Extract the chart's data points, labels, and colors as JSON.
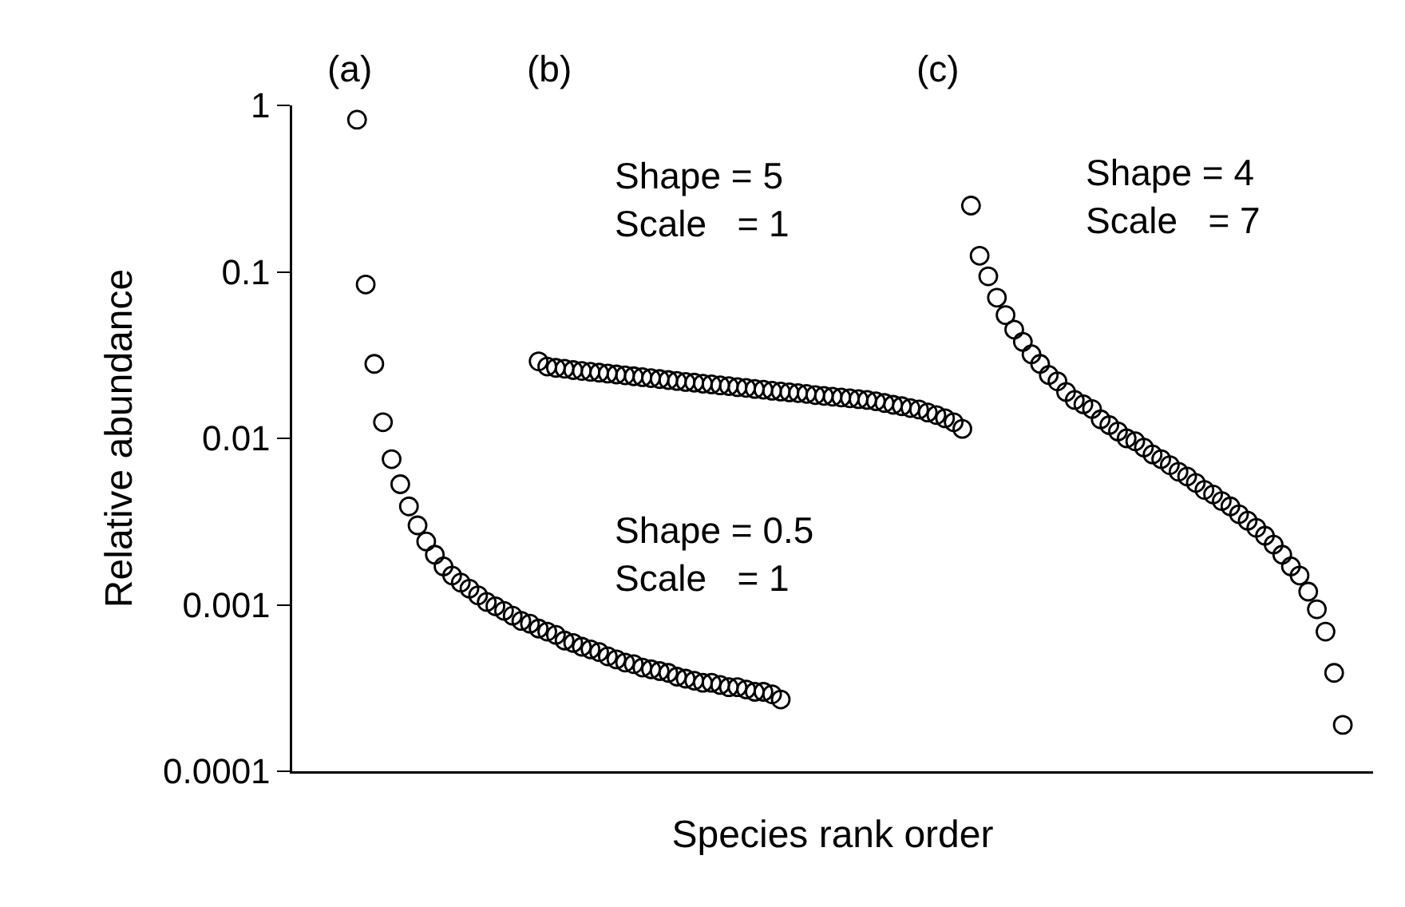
{
  "chart_data": {
    "type": "scatter",
    "xlabel": "Species rank order",
    "ylabel": "Relative abundance",
    "log": "y",
    "marker": "circle",
    "tick_labels": "y",
    "categories": [
      null,
      null,
      null,
      null,
      null,
      null,
      null,
      null,
      null,
      null,
      null,
      null,
      null,
      null,
      null,
      null,
      null,
      null,
      null,
      null,
      null,
      null,
      null,
      null,
      null,
      null,
      null,
      null,
      null,
      null,
      null,
      null,
      null,
      null,
      null,
      null,
      null,
      null,
      null,
      null,
      null,
      null,
      null,
      null,
      null,
      null,
      null,
      null,
      null,
      null,
      null,
      null,
      null,
      null,
      null,
      null,
      null,
      null,
      null,
      null,
      null,
      null,
      null,
      null,
      null,
      null,
      null,
      null,
      null,
      null,
      null,
      null,
      null,
      null,
      null,
      null,
      null,
      null,
      null,
      null,
      null,
      null,
      null,
      null,
      null,
      null,
      null,
      null,
      null,
      null,
      null,
      null,
      null,
      null,
      null,
      null,
      null,
      null,
      null,
      null,
      null,
      null,
      null,
      null,
      null,
      null,
      null,
      null,
      null,
      null,
      null,
      null,
      null,
      null,
      null,
      null,
      null,
      null,
      null,
      null,
      null,
      null,
      null,
      null,
      null
    ],
    "ylim": [
      0.0001,
      1
    ],
    "yticks": [
      0.0001,
      0.001,
      0.01,
      0.1,
      1
    ],
    "series": [
      {
        "color": "#000000",
        "values": [
          null,
          null,
          null,
          null,
          null,
          null,
          null,
          0.82,
          0.084,
          0.028,
          0.0125,
          0.0075,
          0.0053,
          0.0039,
          0.003,
          0.0024,
          0.002,
          0.0017,
          0.0015,
          0.00136,
          0.00125,
          0.00114,
          0.00104,
          0.00098,
          0.00092,
          0.00086,
          0.0008,
          0.00077,
          0.00072,
          0.00069,
          0.00066,
          0.00061,
          0.00059,
          0.00056,
          0.00054,
          0.00052,
          0.00049,
          0.00047,
          0.00045,
          0.00044,
          0.00042,
          0.00041,
          0.0004,
          0.00039,
          0.00037,
          0.00036,
          0.00035,
          0.00034,
          0.00034,
          0.00033,
          0.00032,
          0.00032,
          0.00031,
          0.0003,
          0.0003,
          0.00029,
          0.00027,
          null,
          null,
          null,
          null,
          null,
          null,
          null,
          null,
          null,
          null,
          null,
          null,
          null,
          null,
          null,
          null,
          null,
          null,
          null,
          null,
          null,
          null,
          null,
          null,
          null,
          null,
          null,
          null,
          null,
          null,
          null,
          null,
          null,
          null,
          null,
          null,
          null,
          null,
          null,
          null,
          null,
          null,
          null,
          null,
          null,
          null,
          null,
          null,
          null,
          null,
          null,
          null,
          null,
          null,
          null,
          null,
          null,
          null,
          null,
          null,
          null,
          null,
          null,
          null,
          null,
          null,
          null,
          null
        ]
      },
      {
        "color": "#000000",
        "values": [
          null,
          null,
          null,
          null,
          null,
          null,
          null,
          null,
          null,
          null,
          null,
          null,
          null,
          null,
          null,
          null,
          null,
          null,
          null,
          null,
          null,
          null,
          null,
          null,
          null,
          null,
          null,
          null,
          0.029,
          0.027,
          0.0265,
          0.0262,
          0.0257,
          0.0254,
          0.0251,
          0.0248,
          0.0245,
          0.0242,
          0.0239,
          0.0236,
          0.0233,
          0.023,
          0.0227,
          0.0224,
          0.0221,
          0.0218,
          0.0216,
          0.0213,
          0.0211,
          0.0208,
          0.0206,
          0.0203,
          0.0201,
          0.0198,
          0.0196,
          0.0193,
          0.0191,
          0.0189,
          0.0187,
          0.0185,
          0.0182,
          0.018,
          0.0178,
          0.0176,
          0.0174,
          0.0172,
          0.017,
          0.0167,
          0.0163,
          0.0159,
          0.0156,
          0.0152,
          0.0149,
          0.0143,
          0.0138,
          0.0132,
          0.0125,
          0.0114,
          null,
          null,
          null,
          null,
          null,
          null,
          null,
          null,
          null,
          null,
          null,
          null,
          null,
          null,
          null,
          null,
          null,
          null,
          null,
          null,
          null,
          null,
          null,
          null,
          null,
          null,
          null,
          null,
          null,
          null,
          null,
          null,
          null,
          null,
          null,
          null,
          null,
          null,
          null,
          null,
          null,
          null,
          null,
          null,
          null,
          null,
          null
        ]
      },
      {
        "color": "#000000",
        "values": [
          null,
          null,
          null,
          null,
          null,
          null,
          null,
          null,
          null,
          null,
          null,
          null,
          null,
          null,
          null,
          null,
          null,
          null,
          null,
          null,
          null,
          null,
          null,
          null,
          null,
          null,
          null,
          null,
          null,
          null,
          null,
          null,
          null,
          null,
          null,
          null,
          null,
          null,
          null,
          null,
          null,
          null,
          null,
          null,
          null,
          null,
          null,
          null,
          null,
          null,
          null,
          null,
          null,
          null,
          null,
          null,
          null,
          null,
          null,
          null,
          null,
          null,
          null,
          null,
          null,
          null,
          null,
          null,
          null,
          null,
          null,
          null,
          null,
          null,
          null,
          null,
          null,
          null,
          0.25,
          0.125,
          0.094,
          0.07,
          0.055,
          0.045,
          0.038,
          0.032,
          0.028,
          0.024,
          0.022,
          0.019,
          0.017,
          0.016,
          0.015,
          0.013,
          0.012,
          0.011,
          0.01,
          0.0096,
          0.0088,
          0.008,
          0.0075,
          0.0069,
          0.0063,
          0.0059,
          0.0054,
          0.0049,
          0.0046,
          0.0042,
          0.0039,
          0.0035,
          0.0032,
          0.0029,
          0.0026,
          0.0023,
          0.002,
          0.0017,
          0.0015,
          0.0012,
          0.00094,
          0.00069,
          0.00039,
          0.00019,
          null,
          null,
          null
        ]
      }
    ],
    "annotations": [
      "(a)",
      "(b)",
      "(c)",
      "Shape = 5\nScale   = 1",
      "Shape = 0.5\nScale   = 1",
      "Shape = 4\nScale   = 7"
    ]
  }
}
